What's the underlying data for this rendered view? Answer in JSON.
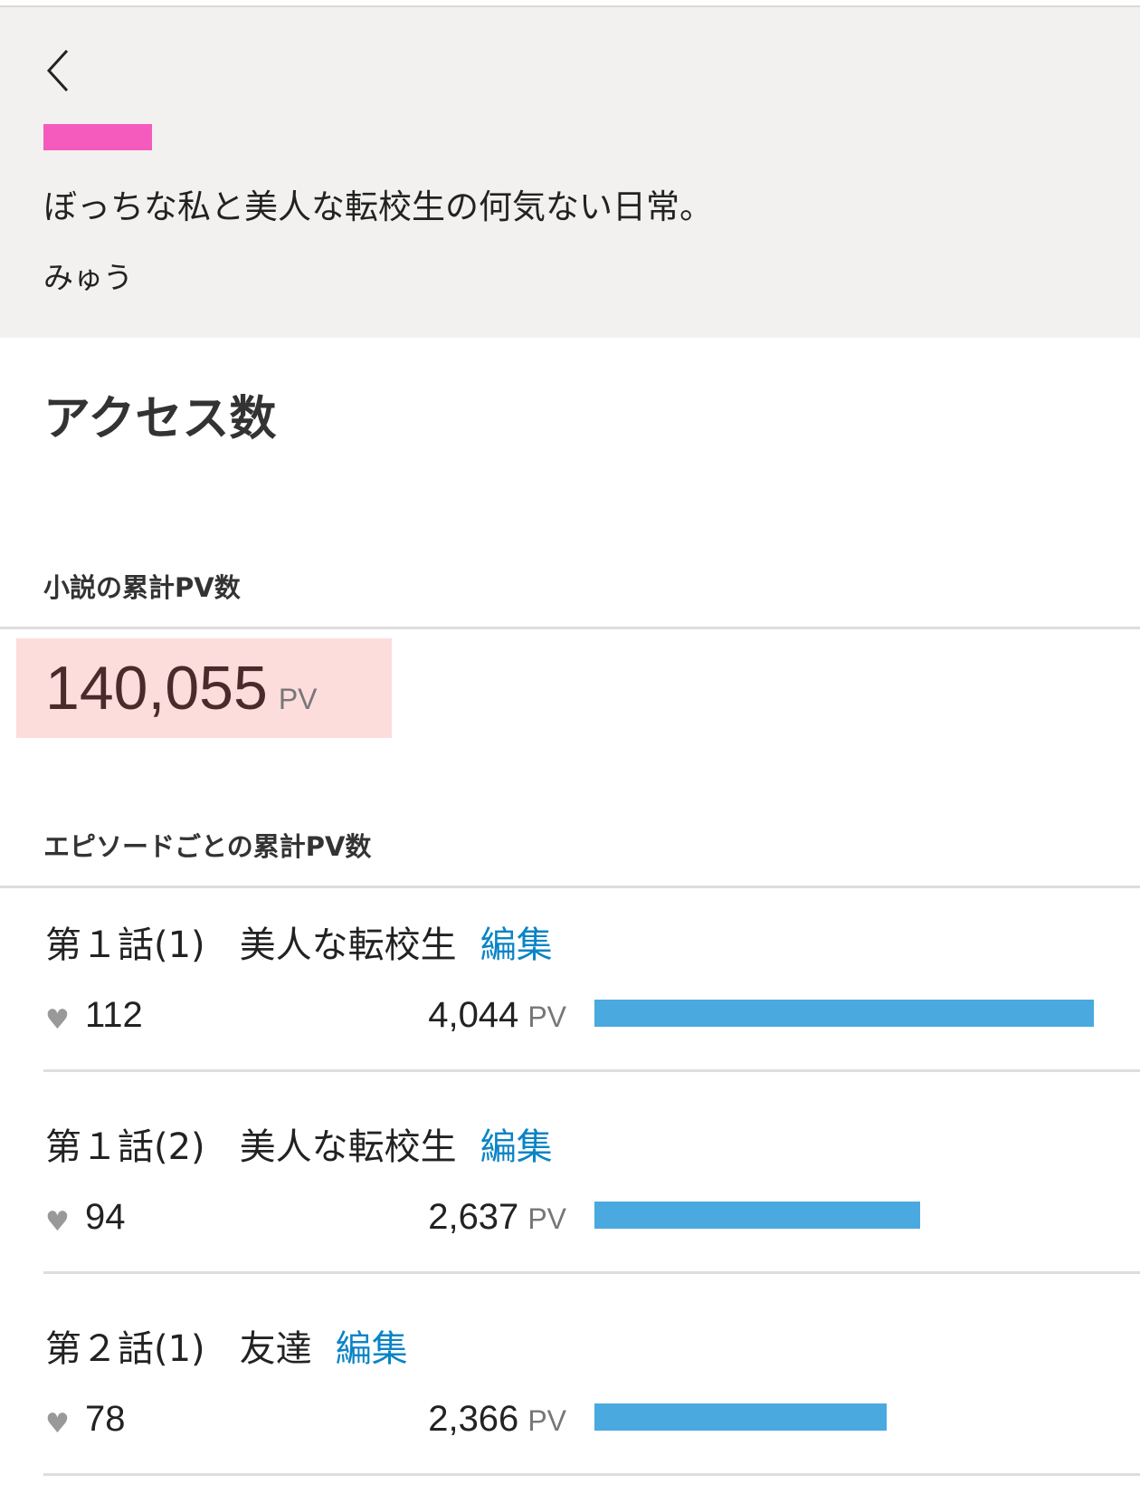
{
  "header": {
    "back_icon": "chevron-left-icon",
    "tag_color": "#f55bbd",
    "title": "ぼっちな私と美人な転校生の何気ない日常。",
    "author": "みゅう"
  },
  "page_title": "アクセス数",
  "total": {
    "label": "小説の累計PV数",
    "value": "140,055",
    "unit": "PV"
  },
  "episodes_label": "エピソードごとの累計PV数",
  "episodes": [
    {
      "number": "第１話(1)",
      "title": "美人な転校生",
      "edit": "編集",
      "likes": "112",
      "pv": "4,044",
      "unit": "PV",
      "pv_value": 4044
    },
    {
      "number": "第１話(2)",
      "title": "美人な転校生",
      "edit": "編集",
      "likes": "94",
      "pv": "2,637",
      "unit": "PV",
      "pv_value": 2637
    },
    {
      "number": "第２話(1)",
      "title": "友達",
      "edit": "編集",
      "likes": "78",
      "pv": "2,366",
      "unit": "PV",
      "pv_value": 2366
    }
  ],
  "bar_color": "#4aa9df"
}
